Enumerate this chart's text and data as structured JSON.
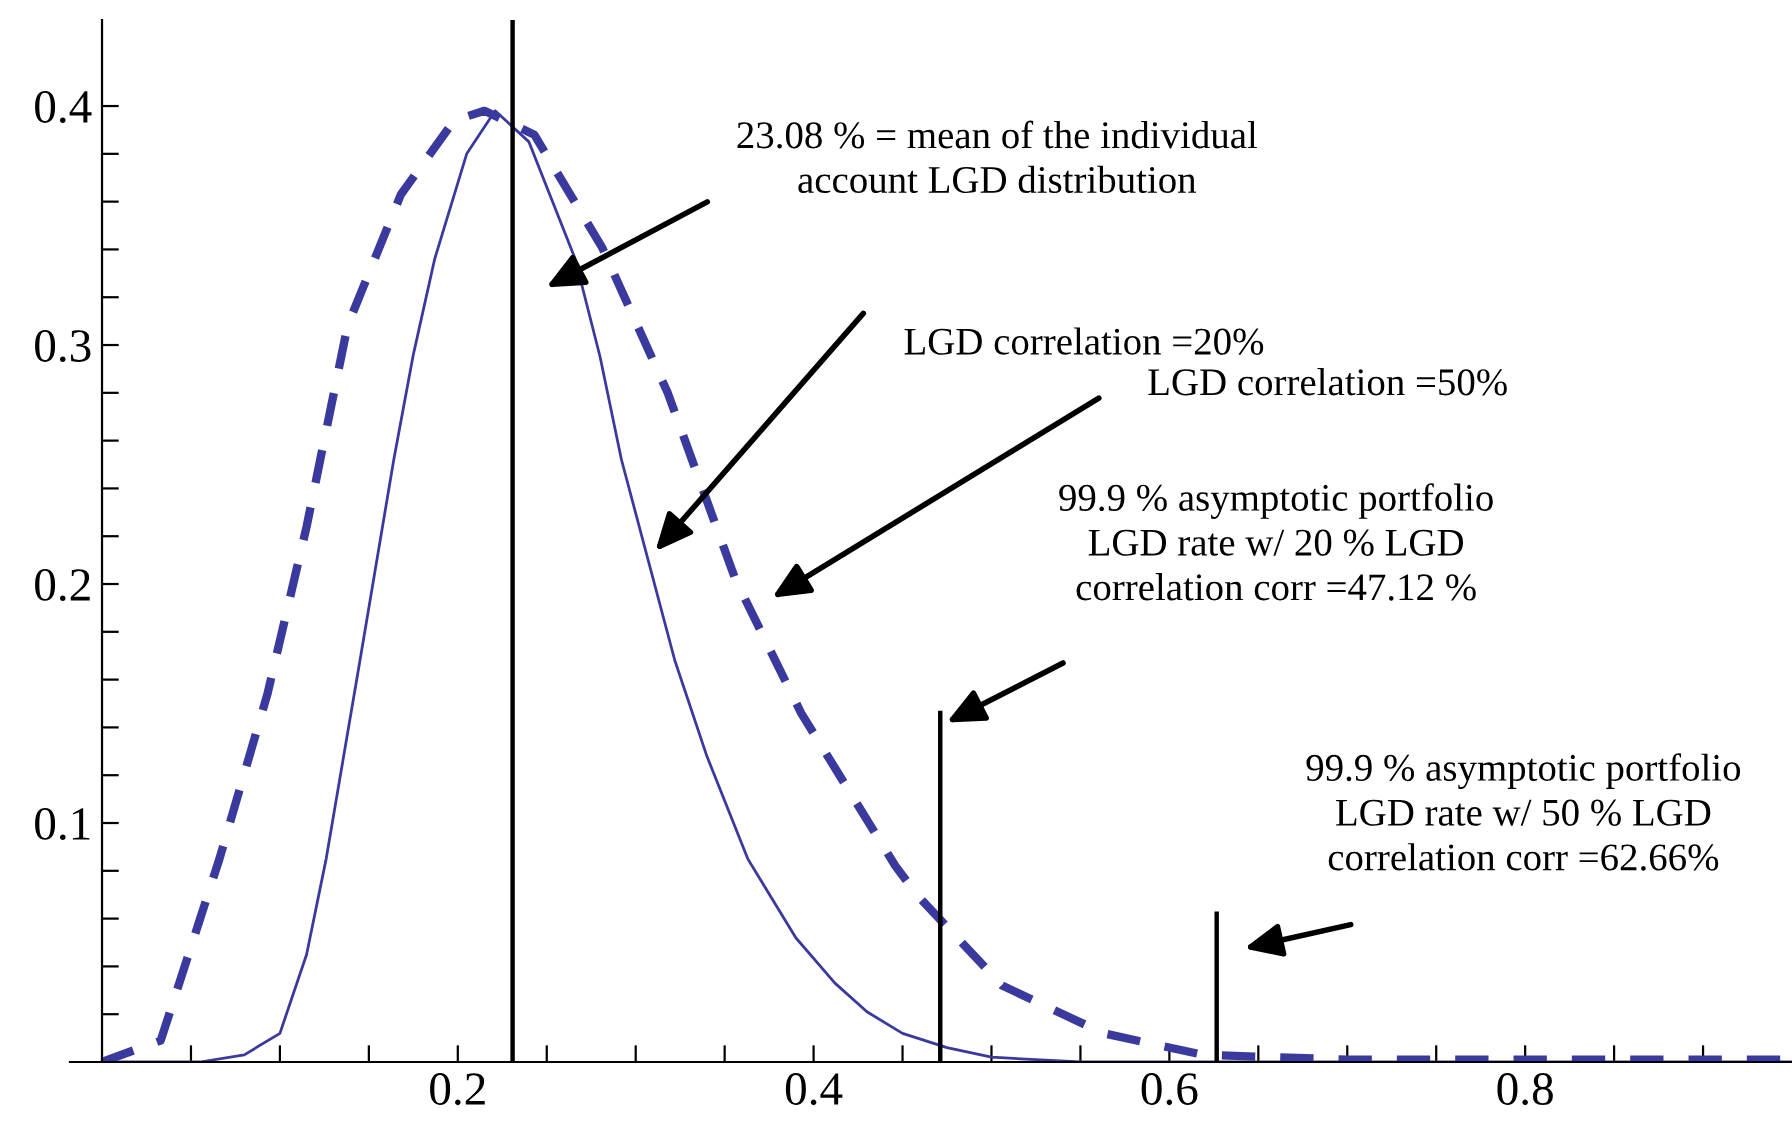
{
  "chart_data": {
    "type": "line",
    "xlim": [
      -0.018,
      0.95
    ],
    "ylim": [
      0,
      0.436
    ],
    "xticks": [
      {
        "value": 0.05,
        "label": null
      },
      {
        "value": 0.1,
        "label": null
      },
      {
        "value": 0.15,
        "label": null
      },
      0.2,
      {
        "value": 0.25,
        "label": null
      },
      {
        "value": 0.3,
        "label": null
      },
      {
        "value": 0.35,
        "label": null
      },
      0.4,
      {
        "value": 0.45,
        "label": null
      },
      {
        "value": 0.5,
        "label": null
      },
      {
        "value": 0.55,
        "label": null
      },
      0.6,
      {
        "value": 0.65,
        "label": null
      },
      {
        "value": 0.7,
        "label": null
      },
      {
        "value": 0.75,
        "label": null
      },
      0.8,
      {
        "value": 0.85,
        "label": null
      },
      {
        "value": 0.9,
        "label": null
      }
    ],
    "yticks": [
      {
        "value": 0.02,
        "label": null
      },
      {
        "value": 0.04,
        "label": null
      },
      {
        "value": 0.06,
        "label": null
      },
      {
        "value": 0.08,
        "label": null
      },
      0.1,
      {
        "value": 0.12,
        "label": null
      },
      {
        "value": 0.14,
        "label": null
      },
      {
        "value": 0.16,
        "label": null
      },
      {
        "value": 0.18,
        "label": null
      },
      0.2,
      {
        "value": 0.22,
        "label": null
      },
      {
        "value": 0.24,
        "label": null
      },
      {
        "value": 0.26,
        "label": null
      },
      {
        "value": 0.28,
        "label": null
      },
      0.3,
      {
        "value": 0.32,
        "label": null
      },
      {
        "value": 0.34,
        "label": null
      },
      {
        "value": 0.36,
        "label": null
      },
      {
        "value": 0.38,
        "label": null
      },
      0.4
    ],
    "grid": false,
    "legend": false,
    "marker": "none",
    "series": [
      {
        "color": "#3a3a9e",
        "line_style": "solid",
        "x": [
          0.0,
          0.055,
          0.08,
          0.1,
          0.115,
          0.126,
          0.145,
          0.164,
          0.175,
          0.187,
          0.205,
          0.221,
          0.24,
          0.266,
          0.28,
          0.292,
          0.322,
          0.34,
          0.363,
          0.39,
          0.412,
          0.43,
          0.45,
          0.475,
          0.5,
          0.55,
          0.95
        ],
        "values": [
          0,
          0,
          0.003,
          0.012,
          0.045,
          0.085,
          0.168,
          0.252,
          0.296,
          0.336,
          0.38,
          0.398,
          0.385,
          0.336,
          0.295,
          0.252,
          0.168,
          0.128,
          0.085,
          0.052,
          0.033,
          0.021,
          0.012,
          0.006,
          0.002,
          0,
          0
        ]
      },
      {
        "color": "#3a3a9e",
        "line_style": "dashed",
        "x": [
          0.0,
          0.033,
          0.066,
          0.093,
          0.115,
          0.138,
          0.168,
          0.198,
          0.215,
          0.243,
          0.281,
          0.318,
          0.356,
          0.393,
          0.446,
          0.458,
          0.506,
          0.563,
          0.619,
          0.7,
          0.95
        ],
        "values": [
          0,
          0.009,
          0.085,
          0.154,
          0.224,
          0.308,
          0.363,
          0.394,
          0.398,
          0.388,
          0.341,
          0.28,
          0.202,
          0.146,
          0.082,
          0.07,
          0.032,
          0.012,
          0.003,
          0.001,
          0.001
        ]
      },
      {
        "color": "#000000",
        "line_style": "solid",
        "x": [
          0.4712,
          0.4712
        ],
        "values": [
          0,
          0.146
        ]
      },
      {
        "color": "#000000",
        "line_style": "solid",
        "x": [
          0.6266,
          0.6266
        ],
        "values": [
          0,
          0.062
        ]
      }
    ],
    "ref_lines": [
      {
        "axis": "x",
        "value": 0.2308,
        "color": "#000000"
      }
    ],
    "annotations": [
      "23.08 % = mean of the individual\naccount LGD distribution",
      "LGD correlation =20%",
      "LGD correlation =50%",
      "99.9 % asymptotic portfolio\nLGD rate w/ 20 % LGD\ncorrelation corr =47.12 %",
      "99.9 % asymptotic portfolio\nLGD rate w/ 50 % LGD\ncorrelation corr =62.66%"
    ]
  }
}
